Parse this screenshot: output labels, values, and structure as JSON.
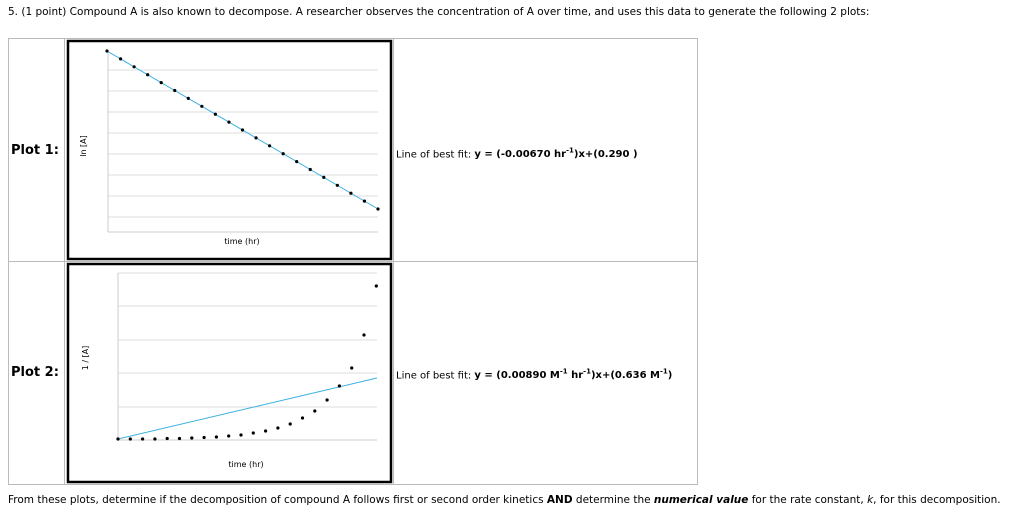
{
  "question": "5. (1 point) Compound A is also known to decompose. A researcher observes the concentration of A over time, and uses this data to generate the following 2 plots:",
  "plots": [
    {
      "label": "Plot 1:",
      "y_axis": "ln [A]",
      "x_axis": "time (hr)",
      "fit_prefix": "Line of best fit: ",
      "fit_parts": [
        {
          "text": "y = (-0.00670 hr"
        },
        {
          "sup": "-1"
        },
        {
          "text": ")x+(0.290 )"
        }
      ]
    },
    {
      "label": "Plot 2:",
      "y_axis": "1 / [A]",
      "x_axis": "time (hr)",
      "fit_prefix": "Line of best fit: ",
      "fit_parts": [
        {
          "text": "y = (0.00890 M"
        },
        {
          "sup": "-1"
        },
        {
          "text": " hr"
        },
        {
          "sup": "-1"
        },
        {
          "text": ")x+(0.636 M"
        },
        {
          "sup": "-1"
        },
        {
          "text": ")"
        }
      ]
    }
  ],
  "footer": [
    {
      "text": "From these plots, determine if the decomposition of compound A follows first or second order kinetics "
    },
    {
      "b": "AND"
    },
    {
      "text": " determine the "
    },
    {
      "bi": "numerical value"
    },
    {
      "text": " for the rate constant, "
    },
    {
      "i": "k"
    },
    {
      "text": ", for this decomposition."
    }
  ]
}
